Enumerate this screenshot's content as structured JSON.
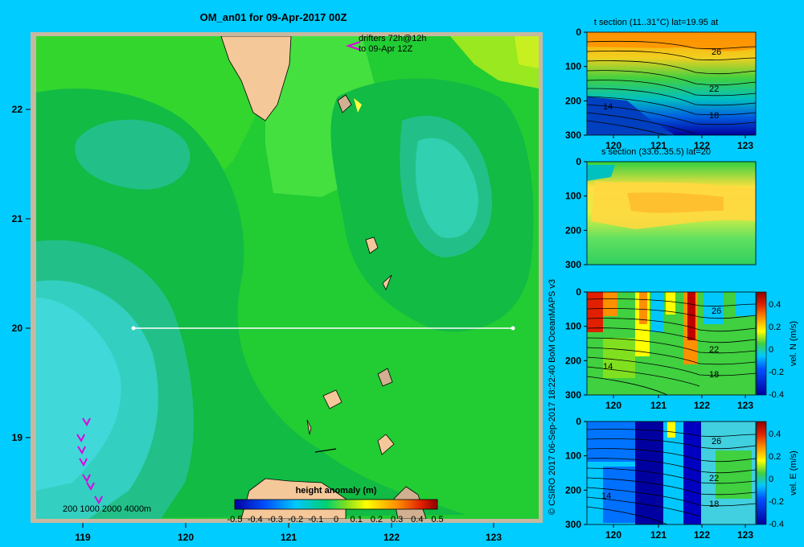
{
  "map": {
    "title": "OM_an01 for 09-Apr-2017 00Z",
    "drifters_line1": "drifters 72h@12h",
    "drifters_line2": "to 09-Apr 12Z",
    "depth_scale": "200  1000  2000  4000m",
    "lon_ticks": [
      "119",
      "120",
      "121",
      "122",
      "123"
    ],
    "lat_ticks": [
      "22",
      "21",
      "20",
      "19"
    ],
    "colorbar_label": "height anomaly (m)",
    "colorbar_ticks": [
      "-0.5",
      "-0.4",
      "-0.3",
      "-0.2",
      "-0.1",
      "0",
      "0.1",
      "0.2",
      "0.3",
      "0.4",
      "0.5"
    ]
  },
  "credit": "© CSIRO 2017   06-Sep-2017 18:22:40 BoM OceanMAPS v3",
  "sections": [
    {
      "title": "t section (11..31°C) lat=19.95 at",
      "y_ticks": [
        "0",
        "100",
        "200",
        "300"
      ],
      "x_ticks": [
        "120",
        "121",
        "122",
        "123"
      ],
      "contour_labels": [
        "26",
        "22",
        "18",
        "14"
      ],
      "colorbar": null
    },
    {
      "title": "s section (33.6..35.5) lat=20",
      "y_ticks": [
        "0",
        "100",
        "200",
        "300"
      ],
      "x_ticks": [
        "120",
        "121",
        "122",
        "123"
      ],
      "contour_labels": [],
      "colorbar": null
    },
    {
      "title": "",
      "y_ticks": [
        "0",
        "100",
        "200",
        "300"
      ],
      "x_ticks": [
        "120",
        "121",
        "122",
        "123"
      ],
      "contour_labels": [
        "26",
        "22",
        "18",
        "14"
      ],
      "colorbar": {
        "label": "vel. N (m/s)",
        "ticks": [
          "0.4",
          "0.2",
          "0",
          "-0.2",
          "-0.4"
        ]
      }
    },
    {
      "title": "",
      "y_ticks": [
        "0",
        "100",
        "200",
        "300"
      ],
      "x_ticks": [
        "120",
        "121",
        "122",
        "123"
      ],
      "contour_labels": [
        "26",
        "22",
        "18",
        "14"
      ],
      "colorbar": {
        "label": "vel. E (m/s)",
        "ticks": [
          "0.4",
          "0.2",
          "0",
          "-0.2",
          "-0.4"
        ]
      }
    }
  ]
}
